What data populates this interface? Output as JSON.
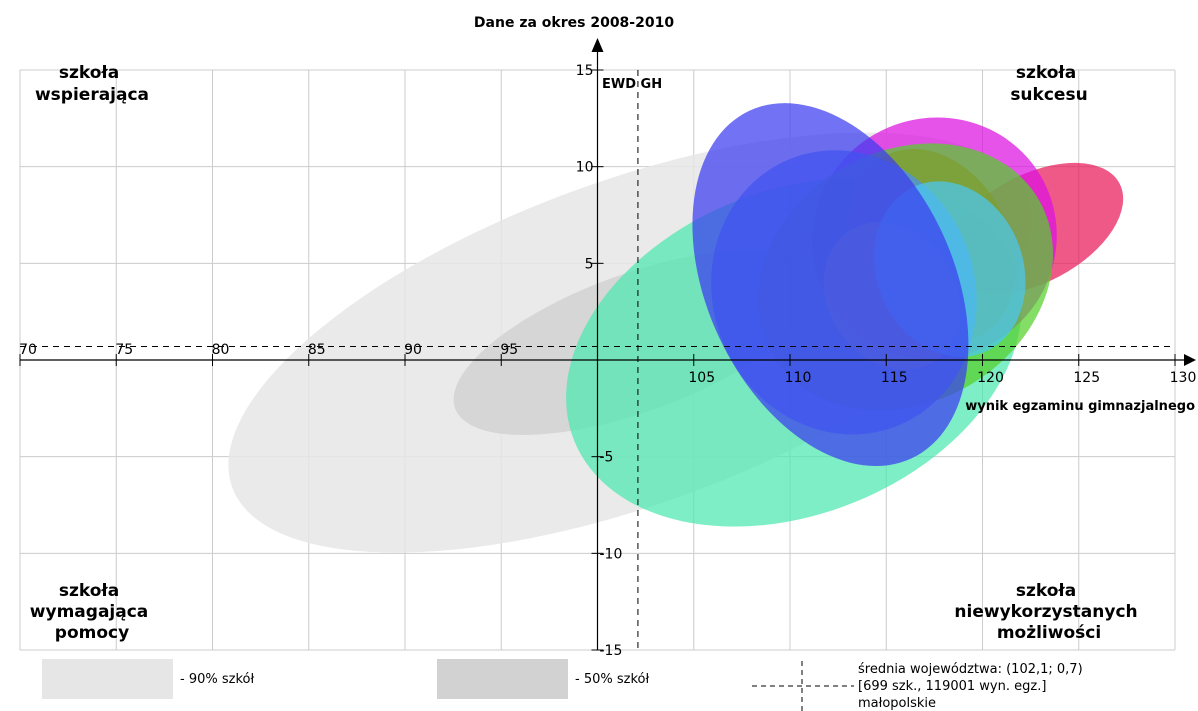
{
  "chart_data": {
    "type": "scatter",
    "title": "Dane za okres 2008-2010",
    "xlabel": "wynik egzaminu gimnazjalnego",
    "ylabel": "EWD GH",
    "xlim": [
      70,
      130
    ],
    "ylim": [
      -15,
      15
    ],
    "x_ticks": [
      "70",
      "75",
      "80",
      "85",
      "90",
      "95",
      "105",
      "110",
      "115",
      "120",
      "125",
      "130"
    ],
    "y_ticks": [
      "15",
      "10",
      "5",
      "-5",
      "-10",
      "-15"
    ],
    "grid": true,
    "reference_lines": {
      "x": 102.1,
      "y": 0.7
    },
    "quadrants": {
      "top_left": [
        "szkoła",
        "wspierająca"
      ],
      "top_right": [
        "szkoła",
        "sukcesu"
      ],
      "bottom_left": [
        "szkoła",
        "wymagająca",
        "pomocy"
      ],
      "bottom_right": [
        "szkoła",
        "niewykorzystanych",
        "możliwości"
      ]
    },
    "distribution_regions": [
      {
        "label": "- 90% szkół",
        "color": "#e6e6e6",
        "cx": 101.7,
        "cy": 0.9,
        "rx": 22,
        "ry": 2.7,
        "angle": 20
      },
      {
        "label": "- 50% szkół",
        "color": "#d2d2d2",
        "cx": 102.0,
        "cy": 0.9,
        "rx": 10,
        "ry": 1.15,
        "angle": 20
      }
    ],
    "ellipses": [
      {
        "color": "#4be8ae",
        "cx": 110.2,
        "cy": 0.4,
        "rx": 12.3,
        "ry": 2.7,
        "angle": 22
      },
      {
        "color": "#e8195a",
        "cx": 122.7,
        "cy": 6.8,
        "rx": 5.0,
        "ry": 0.9,
        "angle": 28
      },
      {
        "color": "#dd11e0",
        "cx": 117.5,
        "cy": 6.3,
        "rx": 6.4,
        "ry": 2.0,
        "angle": 30
      },
      {
        "color": "#e81e3c",
        "cx": 117.4,
        "cy": 5.9,
        "rx": 4.0,
        "ry": 1.7,
        "angle": 28
      },
      {
        "color": "#55d02a",
        "cx": 116.0,
        "cy": 4.3,
        "rx": 8.0,
        "ry": 2.1,
        "angle": 30
      },
      {
        "color": "#f0ff1a",
        "cx": 115.3,
        "cy": 3.3,
        "rx": 3.3,
        "ry": 1.3,
        "angle": 34
      },
      {
        "color": "#4a92f0",
        "cx": 112.8,
        "cy": 3.5,
        "rx": 6.8,
        "ry": 2.4,
        "angle": 22
      },
      {
        "color": "#4bc8f2",
        "cx": 118.3,
        "cy": 4.7,
        "rx": 3.8,
        "ry": 1.5,
        "angle": 22
      },
      {
        "color": "#3b3bf0",
        "cx": 112.1,
        "cy": 3.9,
        "rx": 6.4,
        "ry": 3.2,
        "angle": 25
      }
    ],
    "legend": {
      "p90_label": "- 90% szkół",
      "p50_label": "- 50% szkół",
      "mean_line1": "średnia województwa: (102,1; 0,7)",
      "mean_line2": "[699 szk., 119001 wyn. egz.]",
      "mean_line3": "małopolskie"
    }
  }
}
